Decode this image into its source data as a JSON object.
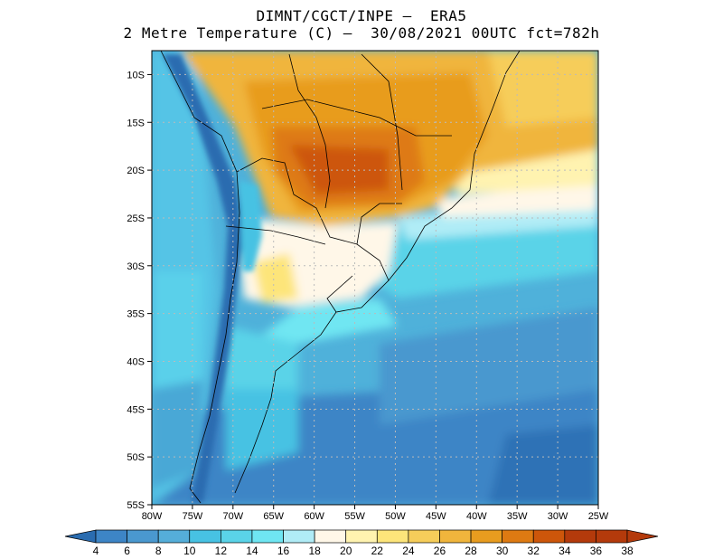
{
  "header": {
    "line1": "DIMNT/CGCT/INPE –  ERA5",
    "line2": "2 Metre Temperature (C) –  30/08/2021 00UTC fct=782h"
  },
  "map": {
    "lat_ticks": [
      "10S",
      "15S",
      "20S",
      "25S",
      "30S",
      "35S",
      "40S",
      "45S",
      "50S",
      "55S"
    ],
    "lon_ticks": [
      "80W",
      "75W",
      "70W",
      "65W",
      "60W",
      "55W",
      "50W",
      "45W",
      "40W",
      "35W",
      "30W",
      "25W"
    ],
    "lat_range_deg": [
      -55,
      -7.5
    ],
    "lon_range_deg": [
      -80,
      -25
    ],
    "gridlines": "dotted"
  },
  "colorbar": {
    "labels": [
      "4",
      "6",
      "8",
      "10",
      "12",
      "14",
      "16",
      "18",
      "20",
      "22",
      "24",
      "26",
      "28",
      "30",
      "32",
      "34",
      "36",
      "38"
    ],
    "colors": [
      "#2a6cb0",
      "#3d85c6",
      "#4a98cf",
      "#55aed9",
      "#47c2e3",
      "#5ad3e8",
      "#6fe6f2",
      "#b0ecf6",
      "#fff7e8",
      "#fff3b0",
      "#fde57a",
      "#f6cd5a",
      "#f0b53c",
      "#e89c1f",
      "#de7a12",
      "#cd560a",
      "#b43a0b"
    ]
  }
}
